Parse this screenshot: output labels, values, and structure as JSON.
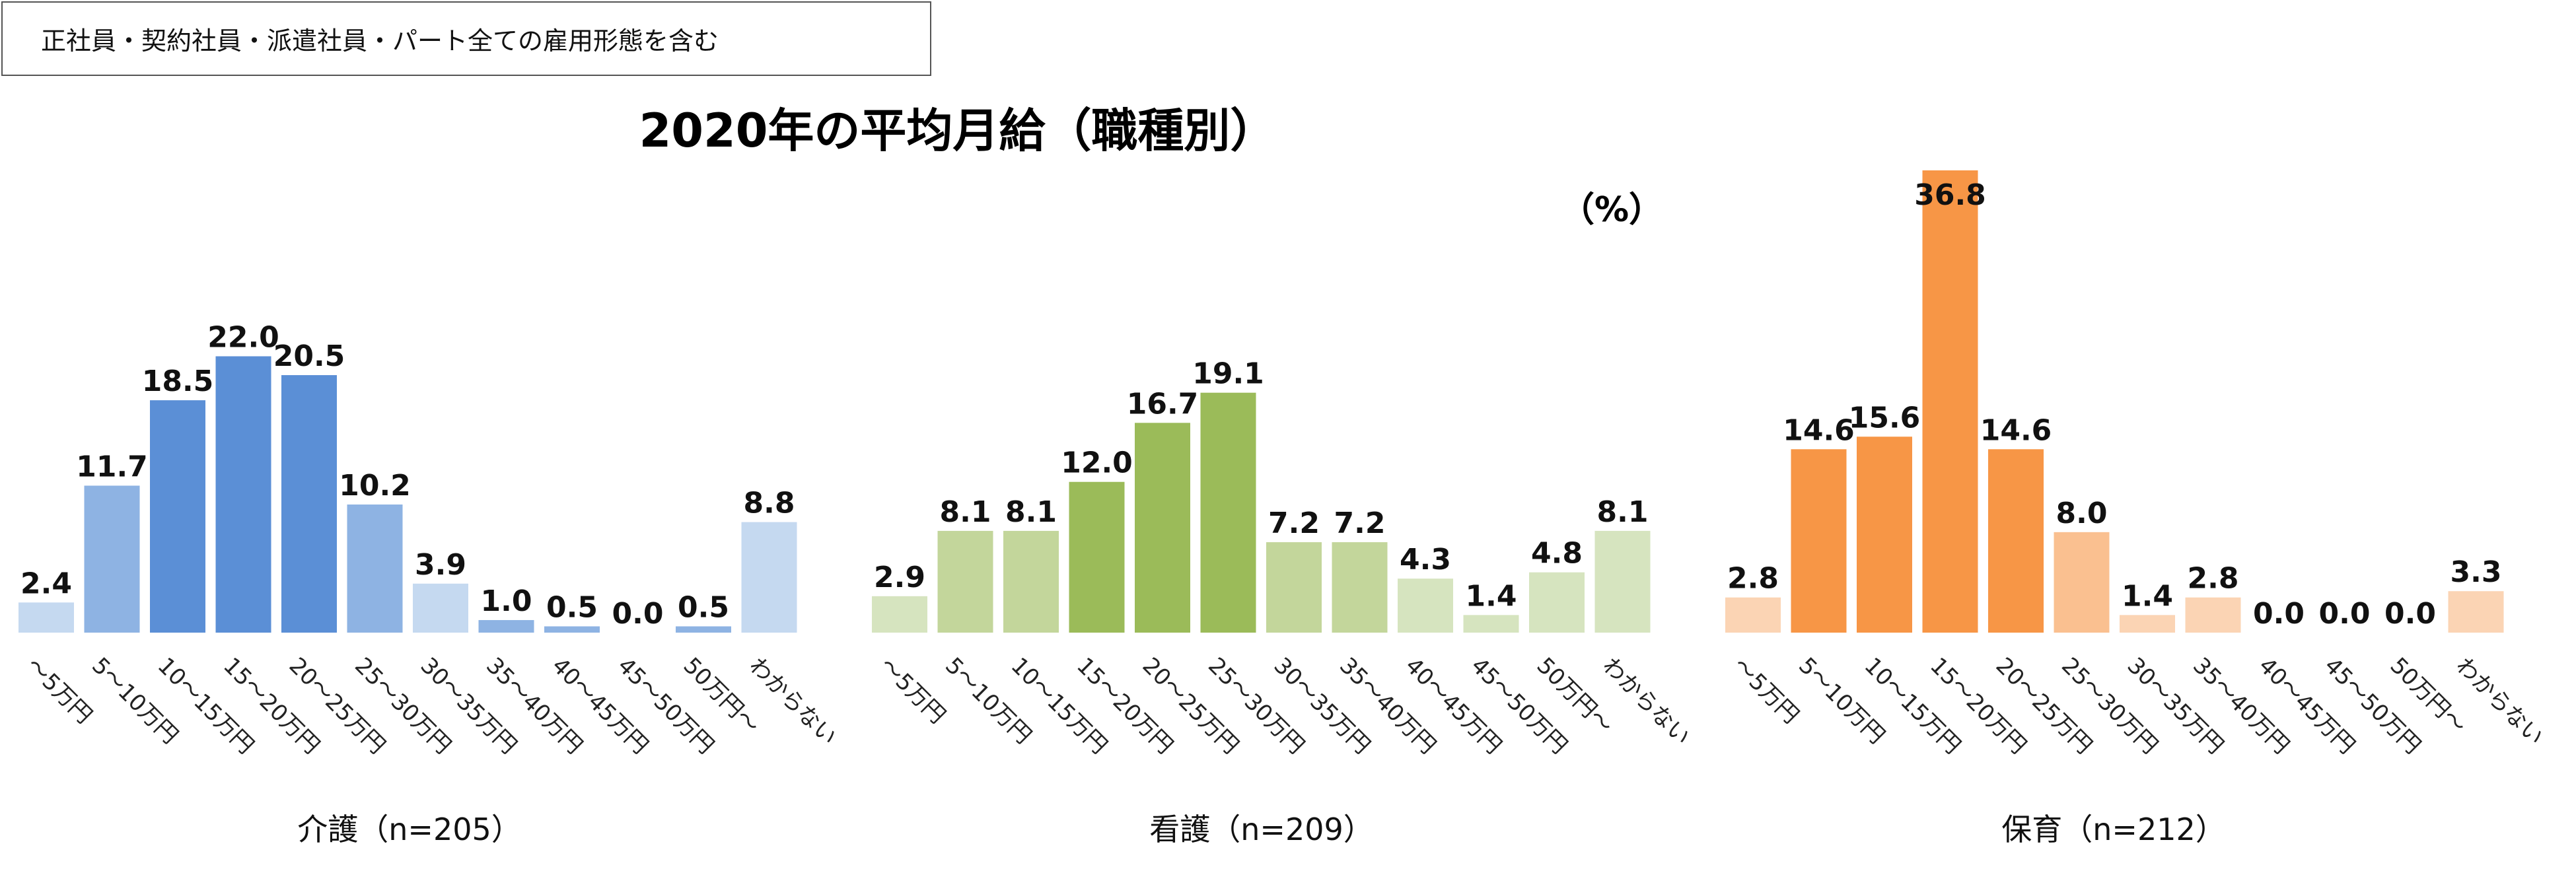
{
  "note": "正社員・契約社員・派遣社員・パート全ての雇用形態を含む",
  "chart_data": {
    "type": "bar",
    "title": "2020年の平均月給（職種別）",
    "unit": "（%）",
    "categories": [
      "～5万円",
      "5～10万円",
      "10～15万円",
      "15～20万円",
      "20～25万円",
      "25～30万円",
      "30～35万円",
      "35～40万円",
      "40～45万円",
      "45～50万円",
      "50万円～",
      "わからない"
    ],
    "ylim": [
      0,
      40
    ],
    "grid": false,
    "series": [
      {
        "name": "介護（n=205）",
        "values": [
          2.4,
          11.7,
          18.5,
          22.0,
          20.5,
          10.2,
          3.9,
          1.0,
          0.5,
          0.0,
          0.5,
          8.8
        ],
        "value_labels": [
          "2.4",
          "11.7",
          "18.5",
          "22.0",
          "20.5",
          "10.2",
          "3.9",
          "1.0",
          "0.5",
          "0.0",
          "0.5",
          "8.8"
        ],
        "colors": [
          "#c5d9f0",
          "#8eb3e3",
          "#5b8fd6",
          "#5b8fd6",
          "#5b8fd6",
          "#8eb3e3",
          "#c5d9f0",
          "#8eb3e3",
          "#8eb3e3",
          "#8eb3e3",
          "#8eb3e3",
          "#c5d9f0"
        ]
      },
      {
        "name": "看護（n=209）",
        "values": [
          2.9,
          8.1,
          8.1,
          12.0,
          16.7,
          19.1,
          7.2,
          7.2,
          4.3,
          1.4,
          4.8,
          8.1
        ],
        "value_labels": [
          "2.9",
          "8.1",
          "8.1",
          "12.0",
          "16.7",
          "19.1",
          "7.2",
          "7.2",
          "4.3",
          "1.4",
          "4.8",
          "8.1"
        ],
        "colors": [
          "#d6e4bf",
          "#c3d69b",
          "#c3d69b",
          "#9bbb59",
          "#9bbb59",
          "#9bbb59",
          "#c3d69b",
          "#c3d69b",
          "#d6e4bf",
          "#d6e4bf",
          "#d6e4bf",
          "#d6e4bf"
        ]
      },
      {
        "name": "保育（n=212）",
        "values": [
          2.8,
          14.6,
          15.6,
          36.8,
          14.6,
          8.0,
          1.4,
          2.8,
          0.0,
          0.0,
          0.0,
          3.3
        ],
        "value_labels": [
          "2.8",
          "14.6",
          "15.6",
          "36.8",
          "14.6",
          "8.0",
          "1.4",
          "2.8",
          "0.0",
          "0.0",
          "0.0",
          "3.3"
        ],
        "colors": [
          "#fbd4b4",
          "#f79646",
          "#f79646",
          "#f79646",
          "#f79646",
          "#fac090",
          "#fbd4b4",
          "#fbd4b4",
          "#fbd4b4",
          "#fbd4b4",
          "#fbd4b4",
          "#fbd4b4"
        ]
      }
    ]
  }
}
